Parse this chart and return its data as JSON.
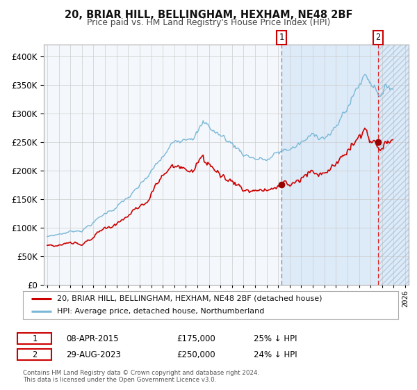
{
  "title": "20, BRIAR HILL, BELLINGHAM, HEXHAM, NE48 2BF",
  "subtitle": "Price paid vs. HM Land Registry's House Price Index (HPI)",
  "legend_property": "20, BRIAR HILL, BELLINGHAM, HEXHAM, NE48 2BF (detached house)",
  "legend_hpi": "HPI: Average price, detached house, Northumberland",
  "sale1_date": "08-APR-2015",
  "sale1_price_str": "£175,000",
  "sale1_pct": "25% ↓ HPI",
  "sale1_price_val": 175000,
  "sale2_date": "29-AUG-2023",
  "sale2_price_str": "£250,000",
  "sale2_pct": "24% ↓ HPI",
  "sale2_price_val": 250000,
  "footnote1": "Contains HM Land Registry data © Crown copyright and database right 2024.",
  "footnote2": "This data is licensed under the Open Government Licence v3.0.",
  "hpi_color": "#7ab8d8",
  "property_color": "#cc0000",
  "sale1_x": 2015.27,
  "sale2_x": 2023.66,
  "xlim": [
    1994.7,
    2026.3
  ],
  "ylim": [
    0,
    420000
  ],
  "plot_bg": "#f4f7fb",
  "highlight_color": "#ddeaf8",
  "grid_color": "#cccccc",
  "background_color": "#ffffff"
}
